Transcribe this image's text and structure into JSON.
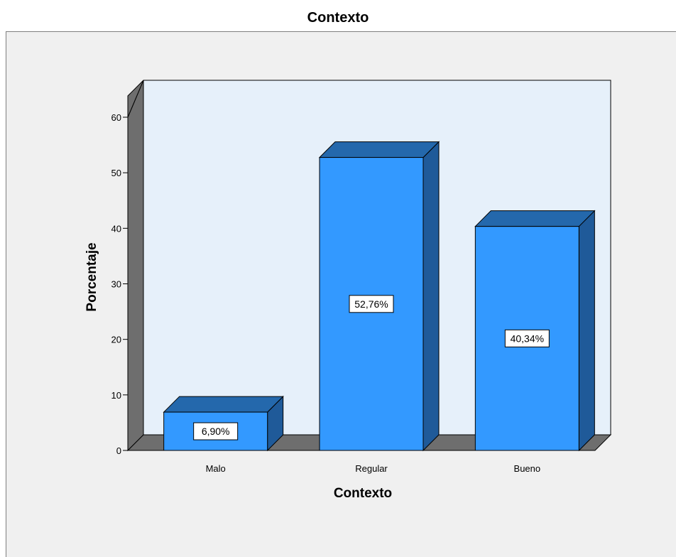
{
  "chart_data": {
    "type": "bar",
    "title": "Contexto",
    "xlabel": "Contexto",
    "ylabel": "Porcentaje",
    "categories": [
      "Malo",
      "Regular",
      "Bueno"
    ],
    "values": [
      6.9,
      52.76,
      40.34
    ],
    "data_labels": [
      "6,90%",
      "52,76%",
      "40,34%"
    ],
    "y_ticks": [
      0,
      10,
      20,
      30,
      40,
      50,
      60
    ],
    "ylim": [
      0,
      60
    ],
    "three_d": true,
    "grid": false,
    "legend": "none",
    "colors": {
      "bar_front": "#3399ff",
      "bar_top": "#2468ac",
      "bar_side": "#1f5a99",
      "plot_back": "#e6f0fa",
      "wall": "#6e6e6e",
      "frame_bg": "#f0f0f0"
    }
  }
}
